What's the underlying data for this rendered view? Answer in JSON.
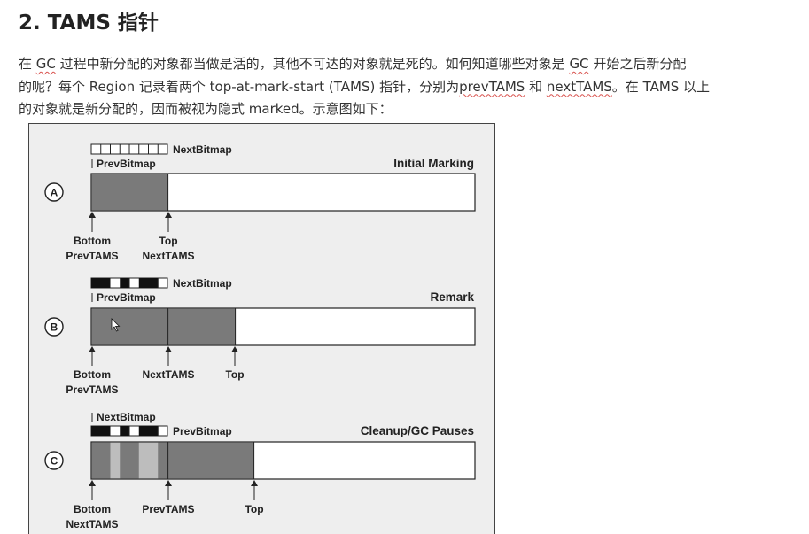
{
  "heading": "2. TAMS 指针",
  "paragraph": {
    "line1": [
      {
        "t": "在 ",
        "u": false
      },
      {
        "t": "GC",
        "u": true
      },
      {
        "t": " 过程中新分配的对象都当做是活的，其他不可达的对象就是死的。如何知道哪些对象是 ",
        "u": false
      },
      {
        "t": "GC",
        "u": true
      },
      {
        "t": " 开始之后新分配",
        "u": false
      }
    ],
    "line2": [
      {
        "t": "的呢？每个 Region 记录着两个 top-at-mark-start (TAMS) 指针，分别为",
        "u": false
      },
      {
        "t": "prevTAMS",
        "u": true
      },
      {
        "t": " 和 ",
        "u": false
      },
      {
        "t": "nextTAMS",
        "u": true
      },
      {
        "t": "。在 TAMS 以上",
        "u": false
      }
    ],
    "line3": [
      {
        "t": "的对象就是新分配的，因而被视为隐式 marked。示意图如下：",
        "u": false
      }
    ]
  },
  "figure": {
    "panels": [
      {
        "circle": "A",
        "title": "Initial Marking",
        "top_bitmap": "NextBitmap",
        "under_bitmap": "PrevBitmap",
        "arrows": [
          {
            "l1": "Bottom",
            "l2": "PrevTAMS"
          },
          {
            "l1": "Top",
            "l2": "NextTAMS"
          }
        ]
      },
      {
        "circle": "B",
        "title": "Remark",
        "top_bitmap": "NextBitmap",
        "under_bitmap": "PrevBitmap",
        "arrows": [
          {
            "l1": "Bottom",
            "l2": "PrevTAMS"
          },
          {
            "l1": "NextTAMS",
            "l2": ""
          },
          {
            "l1": "Top",
            "l2": ""
          }
        ]
      },
      {
        "circle": "C",
        "title": "Cleanup/GC Pauses",
        "top_bitmap": "NextBitmap",
        "under_bitmap": "PrevBitmap",
        "arrows": [
          {
            "l1": "Bottom",
            "l2": "NextTAMS"
          },
          {
            "l1": "PrevTAMS",
            "l2": ""
          },
          {
            "l1": "Top",
            "l2": ""
          }
        ]
      }
    ]
  },
  "colors": {
    "fill_gray": "#7a7a7a",
    "light_gray": "#bdbdbd",
    "bar_outline": "#222222",
    "figure_bg": "#eeeeee",
    "wavy_underline": "#d9534f"
  }
}
